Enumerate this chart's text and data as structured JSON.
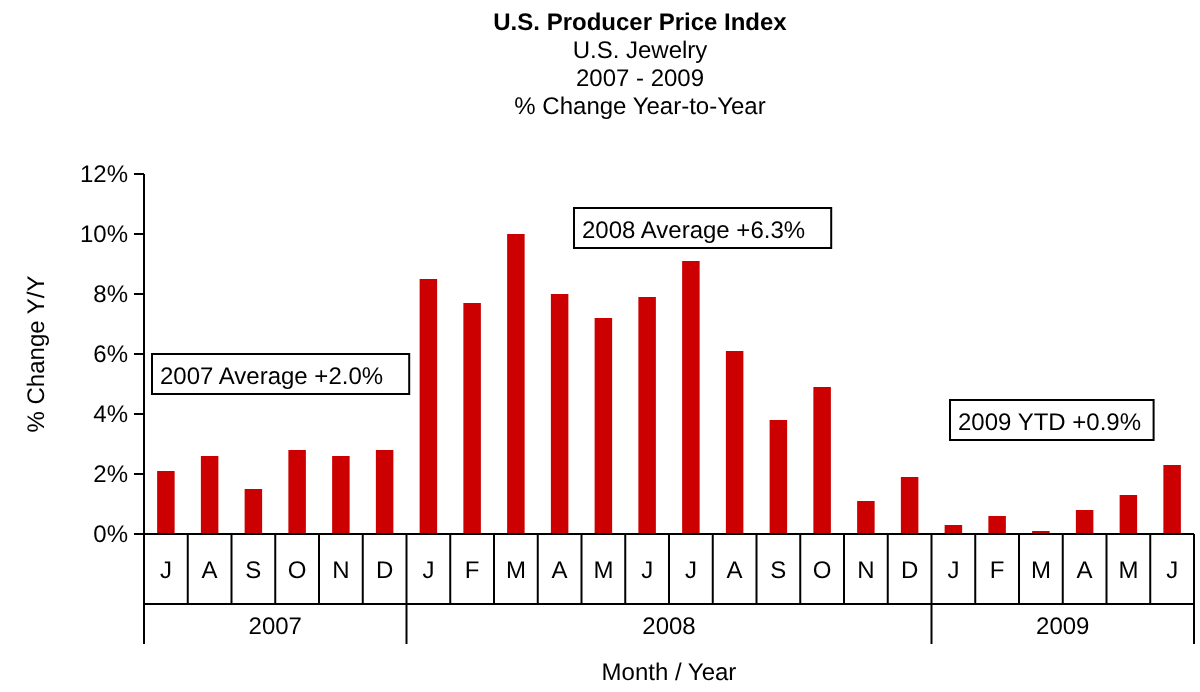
{
  "chart_data": {
    "type": "bar",
    "title": "U.S. Producer Price Index",
    "subtitle": "U.S. Jewelry\n2007 - 2009\n% Change Year-to-Year",
    "xlabel": "Month / Year",
    "ylabel": "% Change Y/Y",
    "categories": [
      "J",
      "A",
      "S",
      "O",
      "N",
      "D",
      "J",
      "F",
      "M",
      "A",
      "M",
      "J",
      "J",
      "A",
      "S",
      "O",
      "N",
      "D",
      "J",
      "F",
      "M",
      "A",
      "M",
      "J"
    ],
    "values": [
      2.1,
      2.6,
      1.5,
      2.8,
      2.6,
      2.8,
      8.5,
      7.7,
      10.0,
      8.0,
      7.2,
      7.9,
      9.1,
      6.1,
      3.8,
      4.9,
      1.1,
      1.9,
      0.3,
      0.6,
      0.1,
      0.8,
      1.3,
      2.3
    ],
    "color": "#cc0000",
    "ylim": [
      0,
      12
    ],
    "yticks": [
      {
        "value": 0,
        "label": "0%"
      },
      {
        "value": 2,
        "label": "2%"
      },
      {
        "value": 4,
        "label": "4%"
      },
      {
        "value": 6,
        "label": "6%"
      },
      {
        "value": 8,
        "label": "8%"
      },
      {
        "value": 10,
        "label": "10%"
      },
      {
        "value": 12,
        "label": "12%"
      }
    ],
    "annotations": [
      "2007 Average +2.0%",
      "2008 Average +6.3%",
      "2009 YTD +0.9%",
      "2007",
      "2008",
      "2009"
    ],
    "grid": false
  }
}
